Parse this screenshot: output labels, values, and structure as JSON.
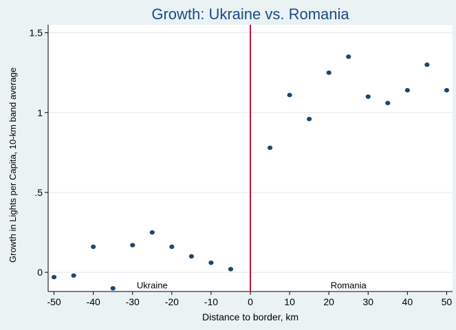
{
  "chart_data": {
    "type": "scatter",
    "title": "Growth: Ukraine vs. Romania",
    "xlabel": "Distance to border, km",
    "ylabel": "Growth in Lights per Capita, 10-km band average",
    "xlim": [
      -51.5,
      51.5
    ],
    "ylim": [
      -0.12,
      1.55
    ],
    "xticks": [
      -50,
      -40,
      -30,
      -20,
      -10,
      0,
      10,
      20,
      30,
      40,
      50
    ],
    "xtick_labels": [
      "-50",
      "-40",
      "-30",
      "-20",
      "-10",
      "0",
      "10",
      "20",
      "30",
      "40",
      "50"
    ],
    "yticks": [
      0,
      0.5,
      1,
      1.5
    ],
    "ytick_labels": [
      "0",
      ".5",
      "1",
      "1.5"
    ],
    "grid": "horizontal",
    "border_line_x": 0,
    "annotations": [
      {
        "text": "Ukraine",
        "x": -25,
        "y": -0.08
      },
      {
        "text": "Romania",
        "x": 25,
        "y": -0.08
      }
    ],
    "series": [
      {
        "x": [
          -50,
          -45,
          -40,
          -35,
          -30,
          -25,
          -20,
          -15,
          -10,
          -5,
          5,
          10,
          15,
          20,
          25,
          30,
          35,
          40,
          45,
          50
        ],
        "y": [
          -0.03,
          -0.02,
          0.16,
          -0.1,
          0.17,
          0.25,
          0.16,
          0.1,
          0.06,
          0.02,
          0.78,
          1.11,
          0.96,
          1.25,
          1.35,
          1.1,
          1.06,
          1.14,
          1.3,
          1.14
        ]
      }
    ],
    "colors": {
      "background": "#eaf2f3",
      "plot_background": "#ffffff",
      "title": "#1a4b8c",
      "marker": "#1a476f",
      "border_line": "#c0143c",
      "grid": "#e0e8ea",
      "axis": "#000000"
    }
  }
}
